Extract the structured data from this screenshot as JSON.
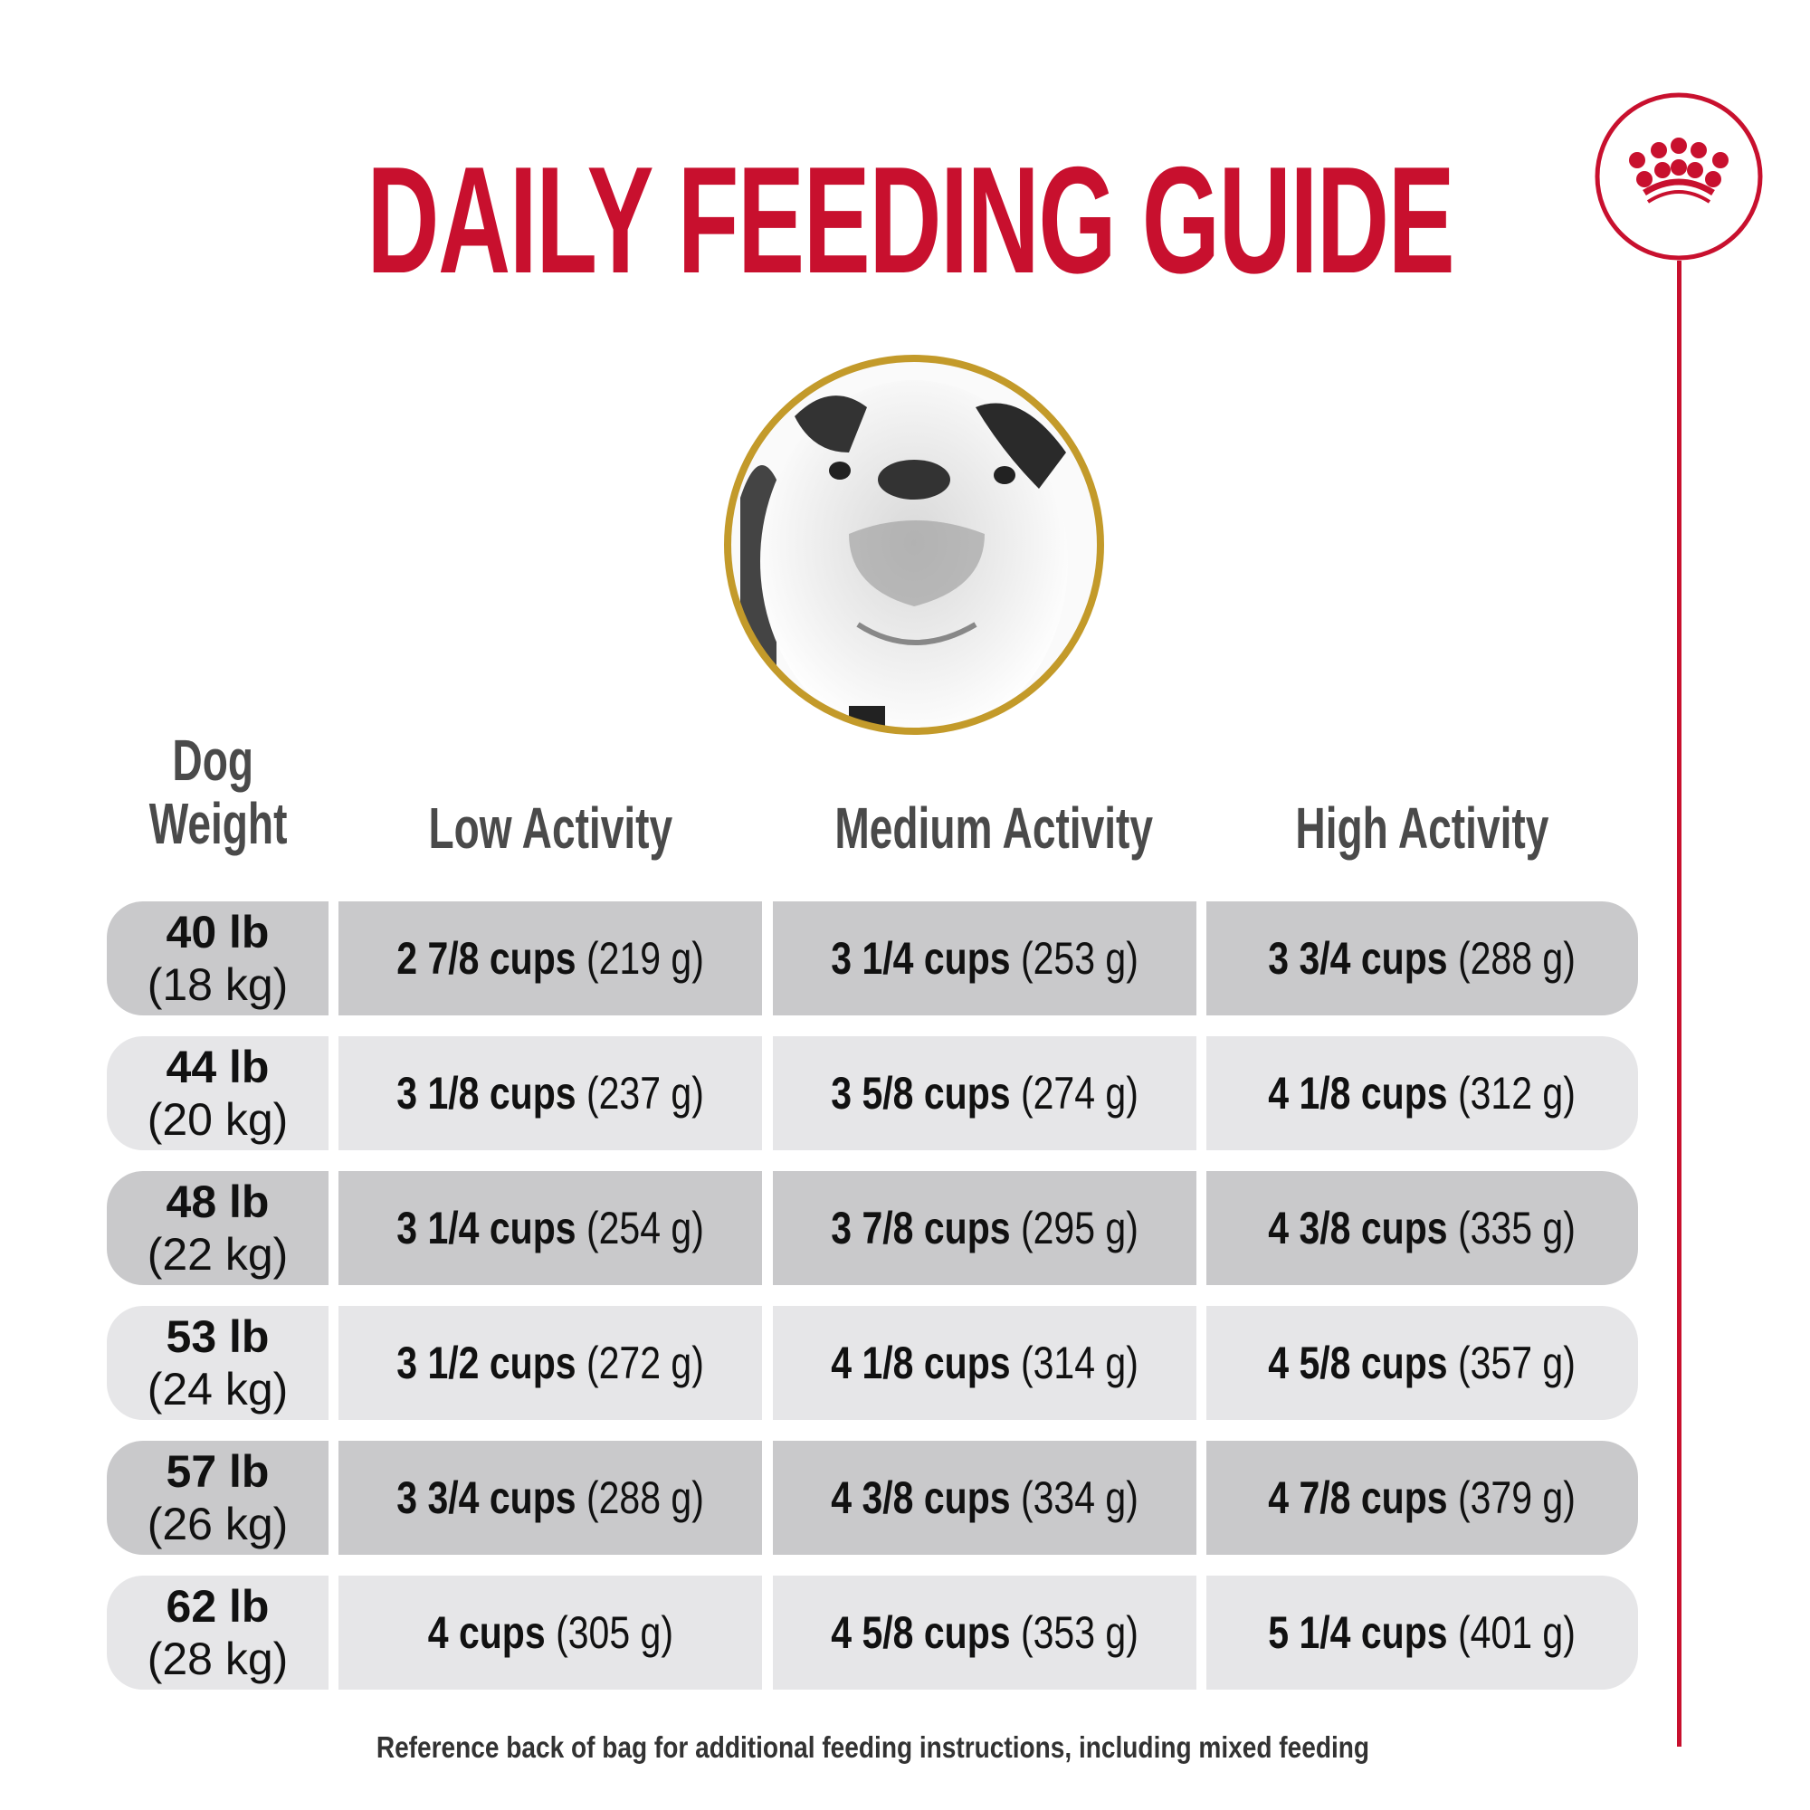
{
  "title": "DAILY FEEDING GUIDE",
  "headers": {
    "weight_line1": "Dog",
    "weight_line2": "Weight",
    "low": "Low Activity",
    "medium": "Medium Activity",
    "high": "High Activity"
  },
  "rows": [
    {
      "lb": "40 lb",
      "kg": "(18 kg)",
      "low": {
        "cups": "2 7/8 cups",
        "g": "(219 g)"
      },
      "medium": {
        "cups": "3 1/4 cups",
        "g": "(253 g)"
      },
      "high": {
        "cups": "3 3/4 cups",
        "g": "(288 g)"
      }
    },
    {
      "lb": "44 lb",
      "kg": "(20 kg)",
      "low": {
        "cups": "3 1/8 cups",
        "g": "(237 g)"
      },
      "medium": {
        "cups": "3 5/8 cups",
        "g": "(274 g)"
      },
      "high": {
        "cups": "4 1/8 cups",
        "g": "(312 g)"
      }
    },
    {
      "lb": "48 lb",
      "kg": "(22 kg)",
      "low": {
        "cups": "3 1/4 cups",
        "g": "(254 g)"
      },
      "medium": {
        "cups": "3 7/8 cups",
        "g": "(295 g)"
      },
      "high": {
        "cups": "4 3/8 cups",
        "g": "(335 g)"
      }
    },
    {
      "lb": "53 lb",
      "kg": "(24 kg)",
      "low": {
        "cups": "3 1/2 cups",
        "g": "(272 g)"
      },
      "medium": {
        "cups": "4 1/8 cups",
        "g": "(314 g)"
      },
      "high": {
        "cups": "4 5/8 cups",
        "g": "(357 g)"
      }
    },
    {
      "lb": "57 lb",
      "kg": "(26 kg)",
      "low": {
        "cups": "3 3/4 cups",
        "g": "(288 g)"
      },
      "medium": {
        "cups": "4 3/8 cups",
        "g": "(334 g)"
      },
      "high": {
        "cups": "4 7/8 cups",
        "g": "(379 g)"
      }
    },
    {
      "lb": "62 lb",
      "kg": "(28 kg)",
      "low": {
        "cups": "4 cups",
        "g": "(305 g)"
      },
      "medium": {
        "cups": "4 5/8 cups",
        "g": "(353 g)"
      },
      "high": {
        "cups": "5 1/4 cups",
        "g": "(401 g)"
      }
    }
  ],
  "footer": "Reference back of bag for additional feeding instructions, including mixed feeding",
  "colors": {
    "brand_red": "#c8102e",
    "gold_ring": "#c39a2a",
    "row_dark": "#c9c9cb",
    "row_light": "#e6e6e8"
  },
  "icons": {
    "logo": "crown-logo-icon",
    "photo": "bulldog-photo"
  }
}
